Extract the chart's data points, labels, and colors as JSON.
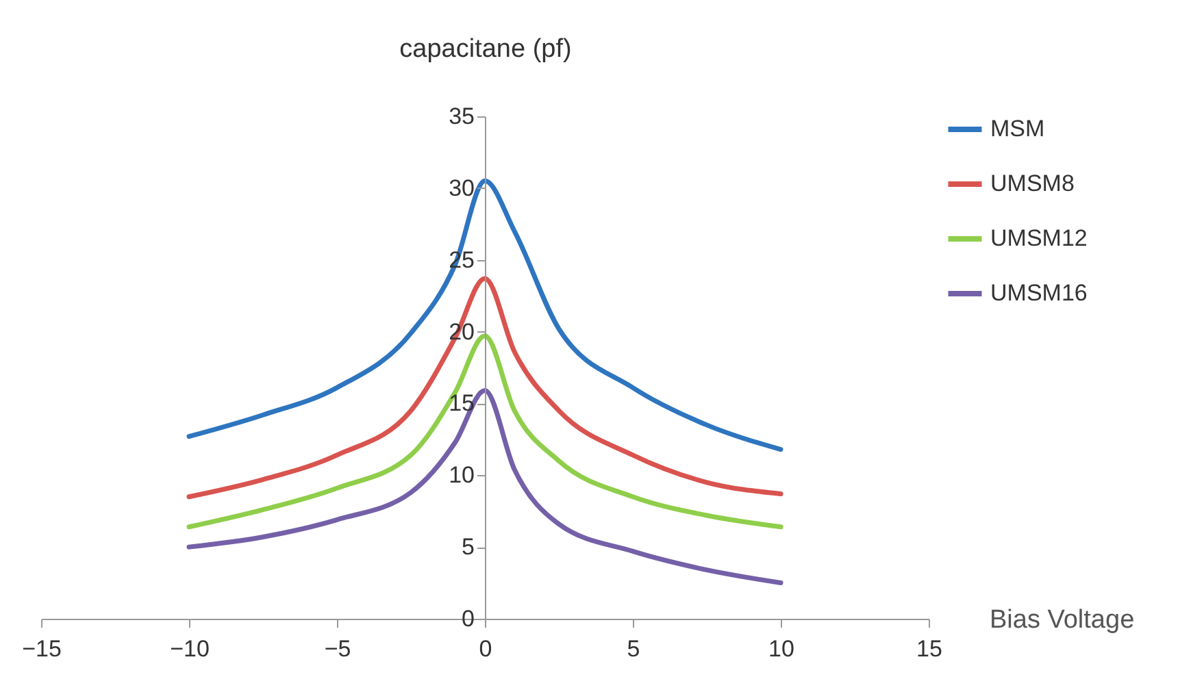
{
  "chart_data": {
    "type": "line",
    "xlabel": "Bias Voltage",
    "ylabel": "capacitane (pf)",
    "x": [
      -10,
      -7.5,
      -5,
      -2.5,
      -1,
      0,
      1,
      2.5,
      5,
      7.5,
      10
    ],
    "series": [
      {
        "name": "MSM",
        "color": "#2e75c0",
        "values": [
          12.7,
          14.2,
          16.1,
          19.9,
          24.7,
          30.5,
          27,
          20.2,
          16.1,
          13.5,
          11.8
        ]
      },
      {
        "name": "UMSM8",
        "color": "#d9534f",
        "values": [
          8.5,
          9.7,
          11.4,
          14.5,
          19.6,
          23.7,
          18.6,
          14.5,
          11.4,
          9.5,
          8.7
        ]
      },
      {
        "name": "UMSM12",
        "color": "#8fce4a",
        "values": [
          6.4,
          7.6,
          9.1,
          11.4,
          15.8,
          19.7,
          14.5,
          11.0,
          8.5,
          7.2,
          6.4
        ]
      },
      {
        "name": "UMSM16",
        "color": "#7460a8",
        "values": [
          5.0,
          5.7,
          6.9,
          8.8,
          12.3,
          15.9,
          10.4,
          6.6,
          4.7,
          3.4,
          2.5
        ]
      }
    ],
    "xlim": [
      -15,
      15
    ],
    "ylim": [
      0,
      35
    ],
    "xticks": [
      -15,
      -10,
      -5,
      0,
      5,
      10,
      15
    ],
    "yticks": [
      0,
      5,
      10,
      15,
      20,
      25,
      30,
      35
    ],
    "grid": false,
    "legend": "top right",
    "marker": "none",
    "line_style": "solid"
  }
}
